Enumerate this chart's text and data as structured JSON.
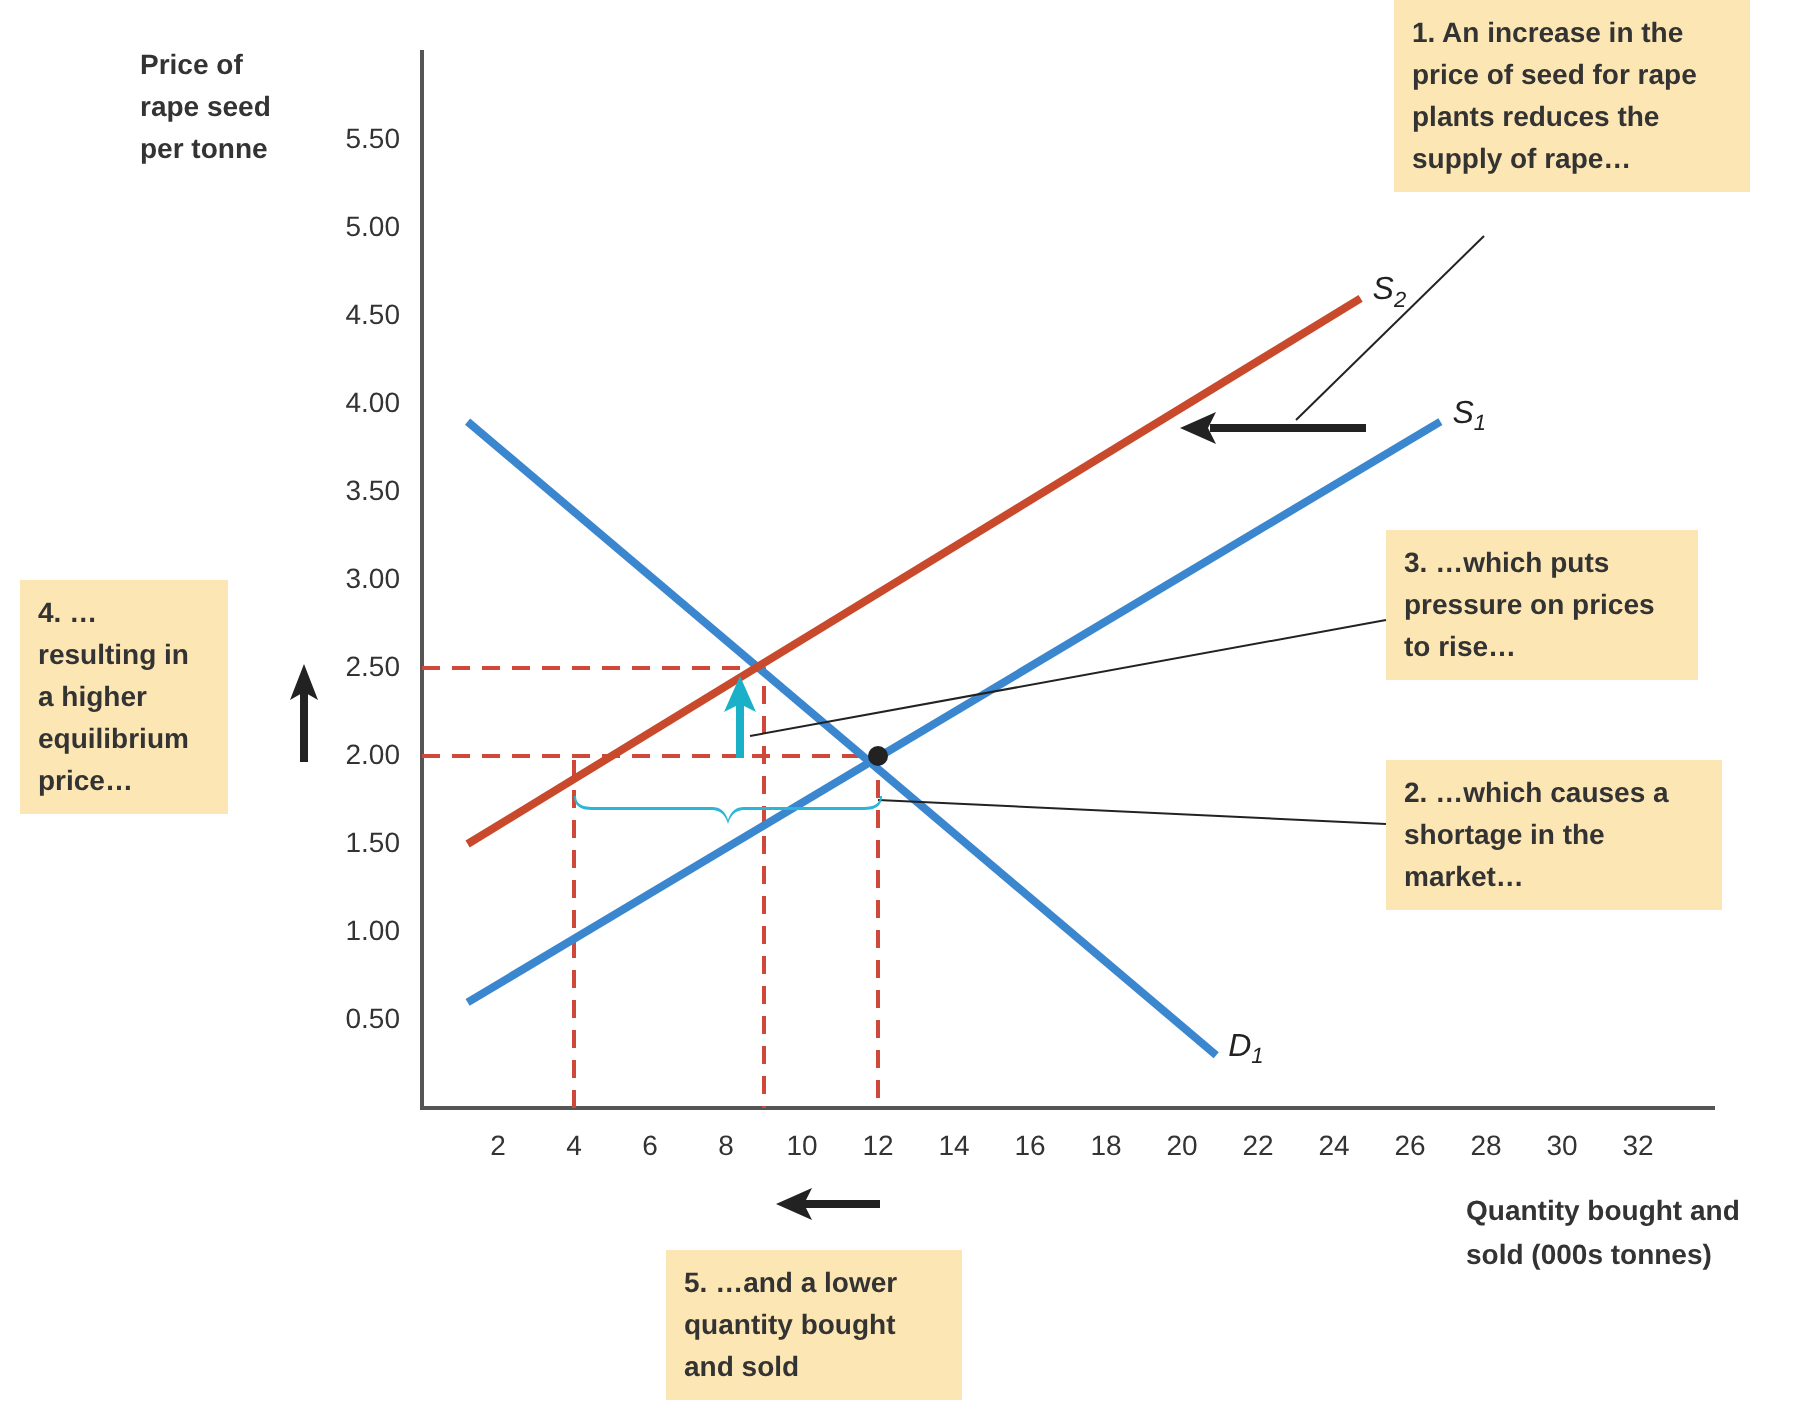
{
  "chart_data": {
    "type": "line",
    "xlabel": "Quantity bought and sold (000s tonnes)",
    "ylabel": "Price of rape seed per tonne",
    "xlim": [
      0,
      34
    ],
    "ylim": [
      0,
      6
    ],
    "xticks": [
      2,
      4,
      6,
      8,
      10,
      12,
      14,
      16,
      18,
      20,
      22,
      24,
      26,
      28,
      30,
      32
    ],
    "yticks": [
      {
        "value": 0.5,
        "label": "0.50"
      },
      {
        "value": 1,
        "label": "1.00"
      },
      {
        "value": 1.5,
        "label": "1.50"
      },
      {
        "value": 2,
        "label": "2.00"
      },
      {
        "value": 2.5,
        "label": "2.50"
      },
      {
        "value": 3,
        "label": "3.00"
      },
      {
        "value": 3.5,
        "label": "3.50"
      },
      {
        "value": 4,
        "label": "4.00"
      },
      {
        "value": 4.5,
        "label": "4.50"
      },
      {
        "value": 5,
        "label": "5.00"
      },
      {
        "value": 5.5,
        "label": "5.50"
      }
    ],
    "marker": "none",
    "line_style": "solid",
    "series": [
      {
        "name": "S$_{2}$",
        "color": "#c8492c",
        "x": [
          1.2,
          24.7
        ],
        "values": [
          1.5,
          4.6
        ]
      },
      {
        "name": "S$_{1}$",
        "color": "#3a86cf",
        "x": [
          1.2,
          26.8
        ],
        "values": [
          0.6,
          3.9
        ]
      },
      {
        "name": "D$_{1}$",
        "color": "#3a86cf",
        "x": [
          1.2,
          20.9
        ],
        "values": [
          3.9,
          0.3
        ]
      },
      {
        "color": "#d0483a",
        "line_style": "dashed",
        "x": [
          0,
          9,
          9
        ],
        "values": [
          2.5,
          2.5,
          0
        ]
      },
      {
        "color": "#d0483a",
        "line_style": "dashed",
        "x": [
          0,
          12,
          12
        ],
        "values": [
          2,
          2,
          0
        ]
      },
      {
        "color": "#d0483a",
        "line_style": "dashed",
        "x": [
          4,
          4
        ],
        "values": [
          0,
          2
        ]
      },
      {
        "type": "scatter",
        "marker": "circle",
        "color": "#222222",
        "x": [
          12
        ],
        "values": [
          2
        ]
      }
    ],
    "annotations": [
      "1. An increase in the price of seed for rape plants reduces the supply of rape…",
      {
        "text": "2. …which causes a shortage in the market…",
        "x": 12,
        "y": 1.75
      },
      "3. …which puts pressure on prices to rise…",
      "4. …resulting in a higher equilibrium price…",
      "5. …and a lower quantity bought and sold"
    ]
  }
}
